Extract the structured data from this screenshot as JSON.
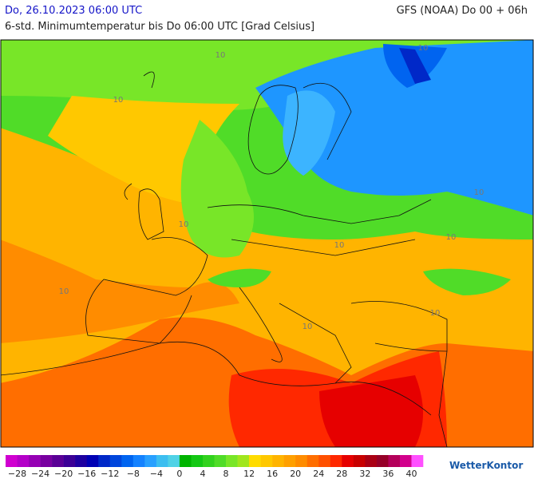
{
  "header": {
    "date": "Do, 26.10.2023 06:00 UTC",
    "model": "GFS (NOAA) Do 00 + 06h",
    "subtitle": "6-std. Minimumtemperatur bis Do 06:00 UTC [Grad Celsius]"
  },
  "map": {
    "contour_labels": [
      "10",
      "10",
      "10",
      "10",
      "10",
      "10",
      "10",
      "10",
      "10",
      "10"
    ]
  },
  "colorbar": {
    "range": [
      -30,
      42
    ],
    "colors": [
      "#d000d0",
      "#b400c8",
      "#9600b4",
      "#7800a0",
      "#5a0096",
      "#3c0096",
      "#1e00a0",
      "#0000b4",
      "#0028c8",
      "#0046dc",
      "#0064f0",
      "#1482ff",
      "#28a0ff",
      "#3cbef0",
      "#50d2e6",
      "#00b400",
      "#14c814",
      "#32d21e",
      "#50dc28",
      "#78e628",
      "#a0e61e",
      "#ffdc00",
      "#ffc800",
      "#ffb400",
      "#ffa000",
      "#ff8c00",
      "#ff6e00",
      "#ff5000",
      "#ff2800",
      "#e60000",
      "#c80000",
      "#aa0014",
      "#960028",
      "#b4005a",
      "#d2008c",
      "#ff50ff"
    ],
    "ticks": [
      {
        "value": -28,
        "label": "−28"
      },
      {
        "value": -24,
        "label": "−24"
      },
      {
        "value": -20,
        "label": "−20"
      },
      {
        "value": -16,
        "label": "−16"
      },
      {
        "value": -12,
        "label": "−12"
      },
      {
        "value": -8,
        "label": "−8"
      },
      {
        "value": -4,
        "label": "−4"
      },
      0,
      4,
      8,
      12,
      16,
      20,
      24,
      28,
      32,
      36,
      40
    ]
  },
  "footer": {
    "logo": "WetterKontor"
  }
}
